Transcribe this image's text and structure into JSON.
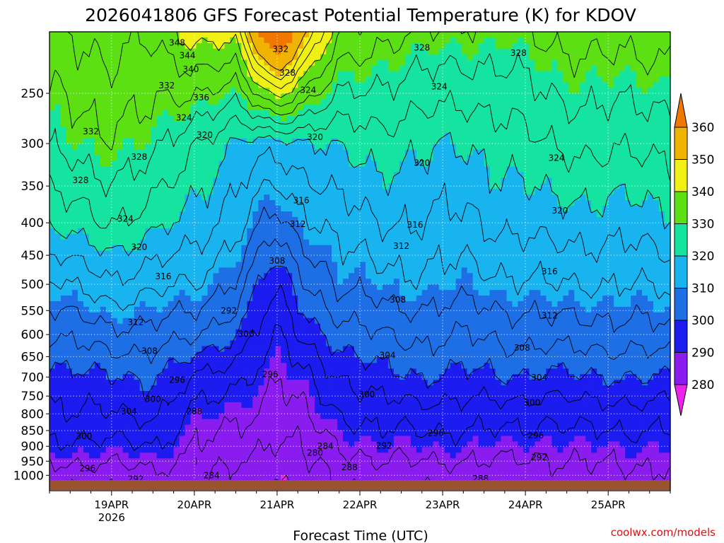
{
  "chart_data": {
    "type": "contour",
    "title": "2026041806 GFS Forecast Potential Temperature (K) for KDOV",
    "xlabel": "Forecast Time (UTC)",
    "ylabel": "",
    "credit": "coolwx.com/models",
    "x_ticks": [
      {
        "label": "19APR",
        "sub": "2026",
        "t": 18
      },
      {
        "label": "20APR",
        "sub": "",
        "t": 42
      },
      {
        "label": "21APR",
        "sub": "",
        "t": 66
      },
      {
        "label": "22APR",
        "sub": "",
        "t": 90
      },
      {
        "label": "23APR",
        "sub": "",
        "t": 114
      },
      {
        "label": "24APR",
        "sub": "",
        "t": 138
      },
      {
        "label": "25APR",
        "sub": "",
        "t": 162
      }
    ],
    "x_range_hours": [
      0,
      180
    ],
    "y_ticks": [
      "250",
      "300",
      "350",
      "400",
      "450",
      "500",
      "550",
      "600",
      "650",
      "700",
      "750",
      "800",
      "850",
      "900",
      "950",
      "1000"
    ],
    "y_values_hpa": [
      250,
      300,
      350,
      400,
      450,
      500,
      550,
      600,
      650,
      700,
      750,
      800,
      850,
      900,
      950,
      1000
    ],
    "y_range_hpa": [
      200,
      1020
    ],
    "y_scale": "log",
    "colorbar": {
      "levels": [
        280,
        290,
        300,
        310,
        320,
        330,
        340,
        350,
        360
      ],
      "labels": [
        "280",
        "290",
        "300",
        "310",
        "320",
        "330",
        "340",
        "350",
        "360"
      ],
      "colors": [
        "#ee22ee",
        "#8a1cf0",
        "#1c1cf0",
        "#1e6ee6",
        "#18b4f0",
        "#14e4a0",
        "#5ce014",
        "#f0f014",
        "#f0b400",
        "#f07800"
      ],
      "extend": "both"
    },
    "contour_interval_K": 4,
    "grid": true,
    "theta_profiles_hpa": {
      "times_hours": [
        0,
        18,
        30,
        42,
        54,
        62,
        66,
        72,
        84,
        96,
        108,
        120,
        132,
        144,
        156,
        168,
        180
      ],
      "levels_hpa": [
        1000,
        900,
        800,
        700,
        600,
        500,
        400,
        300,
        250
      ],
      "theta_K": [
        [
          286,
          291,
          295,
          298,
          304,
          311,
          321,
          329,
          332
        ],
        [
          286,
          291,
          296,
          300,
          307,
          315,
          324,
          331,
          334
        ],
        [
          287,
          292,
          297,
          300,
          306,
          313,
          322,
          330,
          333
        ],
        [
          286,
          288,
          291,
          296,
          305,
          312,
          318,
          324,
          332
        ],
        [
          283,
          286,
          289,
          293,
          300,
          307,
          314,
          320,
          330
        ],
        [
          281,
          284,
          287,
          290,
          294,
          299,
          308,
          318,
          338
        ],
        [
          280,
          283,
          286,
          289,
          292,
          296,
          306,
          318,
          342
        ],
        [
          282,
          284,
          287,
          290,
          296,
          302,
          310,
          319,
          336
        ],
        [
          285,
          288,
          292,
          296,
          302,
          309,
          314,
          321,
          328
        ],
        [
          286,
          290,
          294,
          299,
          304,
          310,
          316,
          322,
          327
        ],
        [
          286,
          290,
          294,
          300,
          305,
          311,
          316,
          321,
          326
        ],
        [
          286,
          290,
          294,
          299,
          304,
          310,
          315,
          320,
          325
        ],
        [
          286,
          290,
          294,
          300,
          305,
          311,
          317,
          322,
          326
        ],
        [
          286,
          289,
          293,
          299,
          306,
          312,
          318,
          324,
          328
        ],
        [
          287,
          290,
          294,
          300,
          306,
          312,
          318,
          325,
          329
        ],
        [
          287,
          290,
          294,
          300,
          306,
          312,
          318,
          325,
          329
        ],
        [
          287,
          290,
          294,
          300,
          307,
          313,
          319,
          325,
          329
        ]
      ]
    },
    "contour_labels": [
      {
        "v": "348",
        "t": 37,
        "p": 208
      },
      {
        "v": "344",
        "t": 40,
        "p": 218
      },
      {
        "v": "340",
        "t": 41,
        "p": 229
      },
      {
        "v": "332",
        "t": 34,
        "p": 243
      },
      {
        "v": "336",
        "t": 44,
        "p": 254
      },
      {
        "v": "332",
        "t": 67,
        "p": 213
      },
      {
        "v": "328",
        "t": 69,
        "p": 232
      },
      {
        "v": "328",
        "t": 108,
        "p": 212
      },
      {
        "v": "328",
        "t": 136,
        "p": 216
      },
      {
        "v": "324",
        "t": 75,
        "p": 247
      },
      {
        "v": "324",
        "t": 113,
        "p": 244
      },
      {
        "v": "324",
        "t": 39,
        "p": 273
      },
      {
        "v": "332",
        "t": 12,
        "p": 287
      },
      {
        "v": "320",
        "t": 45,
        "p": 291
      },
      {
        "v": "320",
        "t": 77,
        "p": 293
      },
      {
        "v": "328",
        "t": 26,
        "p": 315
      },
      {
        "v": "328",
        "t": 9,
        "p": 343
      },
      {
        "v": "320",
        "t": 108,
        "p": 322
      },
      {
        "v": "324",
        "t": 147,
        "p": 316
      },
      {
        "v": "316",
        "t": 73,
        "p": 369
      },
      {
        "v": "312",
        "t": 72,
        "p": 402
      },
      {
        "v": "316",
        "t": 106,
        "p": 403
      },
      {
        "v": "320",
        "t": 148,
        "p": 383
      },
      {
        "v": "324",
        "t": 22,
        "p": 394
      },
      {
        "v": "312",
        "t": 102,
        "p": 435
      },
      {
        "v": "308",
        "t": 66,
        "p": 459
      },
      {
        "v": "320",
        "t": 26,
        "p": 437
      },
      {
        "v": "316",
        "t": 33,
        "p": 486
      },
      {
        "v": "316",
        "t": 145,
        "p": 477
      },
      {
        "v": "308",
        "t": 101,
        "p": 529
      },
      {
        "v": "312",
        "t": 25,
        "p": 574
      },
      {
        "v": "312",
        "t": 145,
        "p": 560
      },
      {
        "v": "292",
        "t": 52,
        "p": 550
      },
      {
        "v": "300",
        "t": 57,
        "p": 599
      },
      {
        "v": "308",
        "t": 137,
        "p": 630
      },
      {
        "v": "308",
        "t": 29,
        "p": 637
      },
      {
        "v": "304",
        "t": 98,
        "p": 647
      },
      {
        "v": "296",
        "t": 64,
        "p": 693
      },
      {
        "v": "296",
        "t": 37,
        "p": 708
      },
      {
        "v": "304",
        "t": 142,
        "p": 701
      },
      {
        "v": "300",
        "t": 30,
        "p": 758
      },
      {
        "v": "300",
        "t": 92,
        "p": 746
      },
      {
        "v": "300",
        "t": 140,
        "p": 768
      },
      {
        "v": "304",
        "t": 23,
        "p": 793
      },
      {
        "v": "288",
        "t": 42,
        "p": 793
      },
      {
        "v": "296",
        "t": 112,
        "p": 858
      },
      {
        "v": "296",
        "t": 141,
        "p": 865
      },
      {
        "v": "300",
        "t": 10,
        "p": 868
      },
      {
        "v": "292",
        "t": 97,
        "p": 898
      },
      {
        "v": "284",
        "t": 80,
        "p": 900
      },
      {
        "v": "280",
        "t": 77,
        "p": 922
      },
      {
        "v": "292",
        "t": 142,
        "p": 937
      },
      {
        "v": "288",
        "t": 87,
        "p": 972
      },
      {
        "v": "296",
        "t": 11,
        "p": 975
      },
      {
        "v": "284",
        "t": 47,
        "p": 1000
      },
      {
        "v": "292",
        "t": 25,
        "p": 1013
      },
      {
        "v": "288",
        "t": 125,
        "p": 1012
      }
    ]
  }
}
